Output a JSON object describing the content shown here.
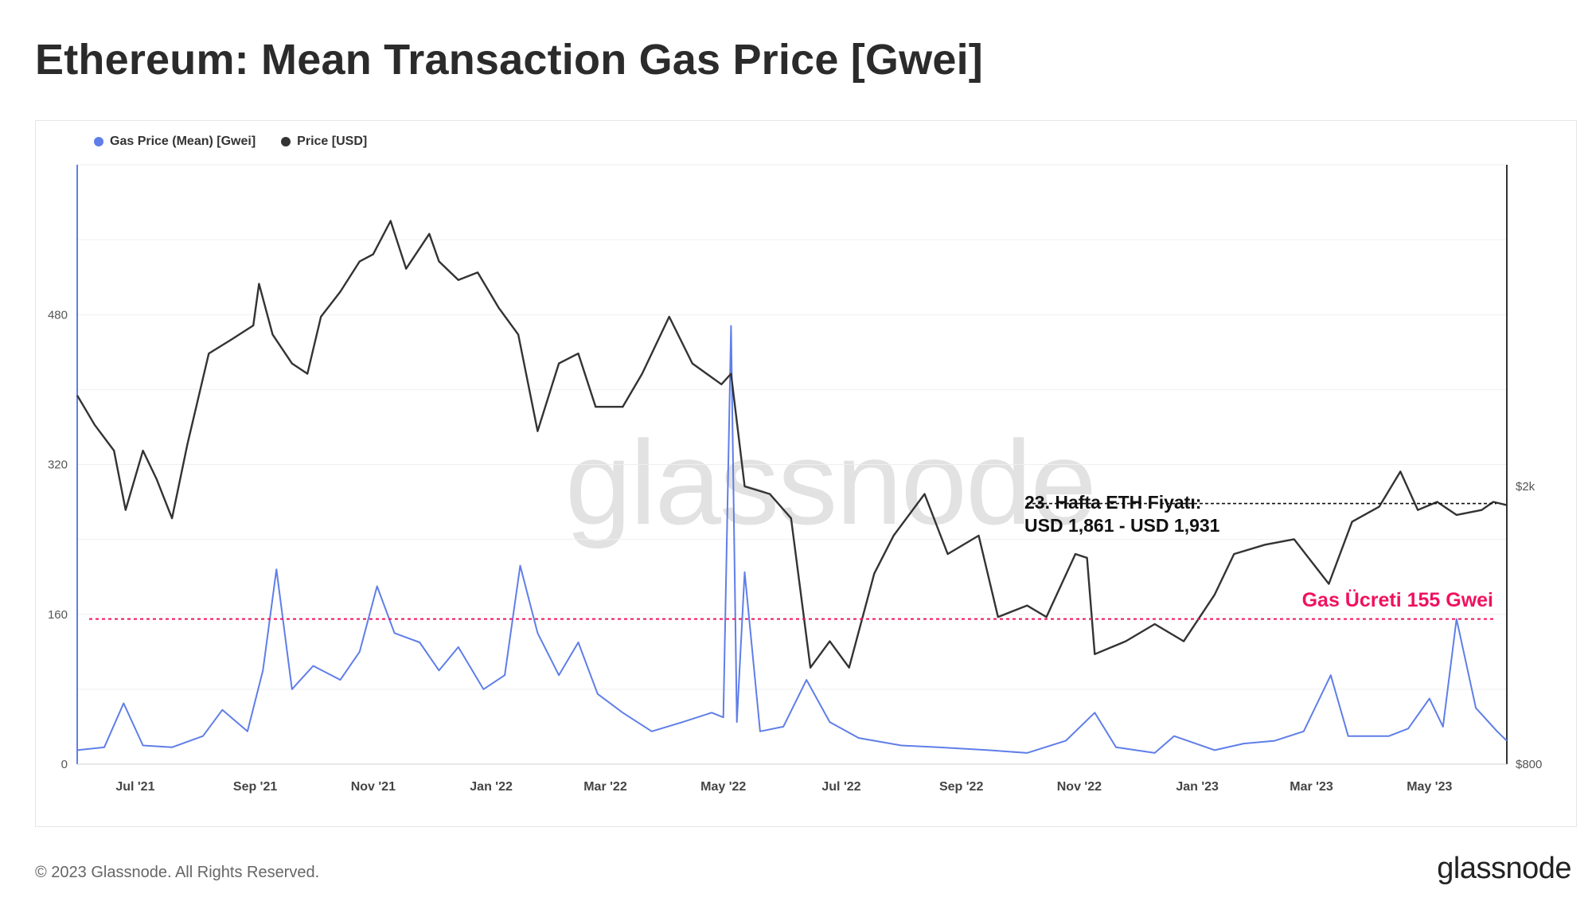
{
  "page_title": "Ethereum: Mean Transaction Gas Price [Gwei]",
  "footer": "© 2023 Glassnode. All Rights Reserved.",
  "brand": "glassnode",
  "watermark": "glassnode",
  "legend": [
    {
      "label": "Gas Price (Mean) [Gwei]",
      "color": "#5f7ee8"
    },
    {
      "label": "Price [USD]",
      "color": "#333333"
    }
  ],
  "annotations": {
    "week_line1": "23. Hafta ETH Fiyatı:",
    "week_line2": "USD 1,861 - USD 1,931",
    "gas_label": "Gas Ücreti 155 Gwei"
  },
  "chart_data": {
    "type": "line",
    "x_tick_labels": [
      "Jul '21",
      "Sep '21",
      "Nov '21",
      "Jan '22",
      "Mar '22",
      "May '22",
      "Jul '22",
      "Sep '22",
      "Nov '22",
      "Jan '23",
      "Mar '23",
      "May '23"
    ],
    "x_start": "2021-06-01",
    "x_end": "2023-06-10",
    "y_left": {
      "label": "",
      "ticks": [
        "0",
        "160",
        "320",
        "480"
      ],
      "range": [
        0,
        640
      ]
    },
    "y_right": {
      "label": "",
      "ticks": [
        "$800",
        "$2k"
      ],
      "scale": "log"
    },
    "reference_line_gwei": 155,
    "grid": true,
    "legend_position": "top-left",
    "series": [
      {
        "name": "Gas Price (Mean) [Gwei]",
        "axis": "left",
        "color": "#5f7ee8",
        "points": [
          [
            "2021-06-01",
            15
          ],
          [
            "2021-06-15",
            18
          ],
          [
            "2021-06-25",
            65
          ],
          [
            "2021-07-05",
            20
          ],
          [
            "2021-07-20",
            18
          ],
          [
            "2021-08-05",
            30
          ],
          [
            "2021-08-15",
            58
          ],
          [
            "2021-08-28",
            35
          ],
          [
            "2021-09-05",
            100
          ],
          [
            "2021-09-12",
            208
          ],
          [
            "2021-09-20",
            80
          ],
          [
            "2021-10-01",
            105
          ],
          [
            "2021-10-15",
            90
          ],
          [
            "2021-10-25",
            120
          ],
          [
            "2021-11-03",
            190
          ],
          [
            "2021-11-12",
            140
          ],
          [
            "2021-11-25",
            130
          ],
          [
            "2021-12-05",
            100
          ],
          [
            "2021-12-15",
            125
          ],
          [
            "2021-12-28",
            80
          ],
          [
            "2022-01-08",
            95
          ],
          [
            "2022-01-16",
            212
          ],
          [
            "2022-01-25",
            140
          ],
          [
            "2022-02-05",
            95
          ],
          [
            "2022-02-15",
            130
          ],
          [
            "2022-02-25",
            75
          ],
          [
            "2022-03-10",
            55
          ],
          [
            "2022-03-25",
            35
          ],
          [
            "2022-04-10",
            45
          ],
          [
            "2022-04-25",
            55
          ],
          [
            "2022-05-01",
            50
          ],
          [
            "2022-05-05",
            468
          ],
          [
            "2022-05-08",
            45
          ],
          [
            "2022-05-12",
            205
          ],
          [
            "2022-05-20",
            35
          ],
          [
            "2022-06-01",
            40
          ],
          [
            "2022-06-13",
            90
          ],
          [
            "2022-06-25",
            45
          ],
          [
            "2022-07-10",
            28
          ],
          [
            "2022-08-01",
            20
          ],
          [
            "2022-08-20",
            18
          ],
          [
            "2022-09-15",
            15
          ],
          [
            "2022-10-05",
            12
          ],
          [
            "2022-10-25",
            25
          ],
          [
            "2022-11-09",
            55
          ],
          [
            "2022-11-20",
            18
          ],
          [
            "2022-12-10",
            12
          ],
          [
            "2022-12-20",
            30
          ],
          [
            "2023-01-10",
            15
          ],
          [
            "2023-01-25",
            22
          ],
          [
            "2023-02-10",
            25
          ],
          [
            "2023-02-25",
            35
          ],
          [
            "2023-03-11",
            95
          ],
          [
            "2023-03-20",
            30
          ],
          [
            "2023-04-10",
            30
          ],
          [
            "2023-04-20",
            38
          ],
          [
            "2023-05-01",
            70
          ],
          [
            "2023-05-08",
            40
          ],
          [
            "2023-05-15",
            155
          ],
          [
            "2023-05-25",
            60
          ],
          [
            "2023-06-05",
            35
          ],
          [
            "2023-06-10",
            25
          ]
        ]
      },
      {
        "name": "Price [USD]",
        "axis": "right",
        "color": "#333333",
        "points": [
          [
            "2021-06-01",
            2700
          ],
          [
            "2021-06-10",
            2450
          ],
          [
            "2021-06-20",
            2250
          ],
          [
            "2021-06-26",
            1850
          ],
          [
            "2021-07-05",
            2250
          ],
          [
            "2021-07-12",
            2050
          ],
          [
            "2021-07-20",
            1800
          ],
          [
            "2021-07-28",
            2300
          ],
          [
            "2021-08-08",
            3100
          ],
          [
            "2021-08-20",
            3250
          ],
          [
            "2021-08-31",
            3400
          ],
          [
            "2021-09-03",
            3900
          ],
          [
            "2021-09-10",
            3300
          ],
          [
            "2021-09-20",
            3000
          ],
          [
            "2021-09-28",
            2900
          ],
          [
            "2021-10-05",
            3500
          ],
          [
            "2021-10-15",
            3800
          ],
          [
            "2021-10-25",
            4200
          ],
          [
            "2021-11-01",
            4300
          ],
          [
            "2021-11-10",
            4800
          ],
          [
            "2021-11-18",
            4100
          ],
          [
            "2021-11-30",
            4600
          ],
          [
            "2021-12-05",
            4200
          ],
          [
            "2021-12-15",
            3950
          ],
          [
            "2021-12-25",
            4050
          ],
          [
            "2022-01-05",
            3600
          ],
          [
            "2022-01-15",
            3300
          ],
          [
            "2022-01-25",
            2400
          ],
          [
            "2022-02-05",
            3000
          ],
          [
            "2022-02-15",
            3100
          ],
          [
            "2022-02-24",
            2600
          ],
          [
            "2022-03-10",
            2600
          ],
          [
            "2022-03-20",
            2900
          ],
          [
            "2022-04-03",
            3500
          ],
          [
            "2022-04-15",
            3000
          ],
          [
            "2022-04-30",
            2800
          ],
          [
            "2022-05-05",
            2900
          ],
          [
            "2022-05-12",
            2000
          ],
          [
            "2022-05-25",
            1950
          ],
          [
            "2022-06-05",
            1800
          ],
          [
            "2022-06-15",
            1100
          ],
          [
            "2022-06-25",
            1200
          ],
          [
            "2022-07-05",
            1100
          ],
          [
            "2022-07-18",
            1500
          ],
          [
            "2022-07-28",
            1700
          ],
          [
            "2022-08-13",
            1950
          ],
          [
            "2022-08-25",
            1600
          ],
          [
            "2022-09-10",
            1700
          ],
          [
            "2022-09-20",
            1300
          ],
          [
            "2022-10-05",
            1350
          ],
          [
            "2022-10-15",
            1300
          ],
          [
            "2022-10-30",
            1600
          ],
          [
            "2022-11-05",
            1580
          ],
          [
            "2022-11-09",
            1150
          ],
          [
            "2022-11-25",
            1200
          ],
          [
            "2022-12-10",
            1270
          ],
          [
            "2022-12-25",
            1200
          ],
          [
            "2023-01-10",
            1400
          ],
          [
            "2023-01-20",
            1600
          ],
          [
            "2023-02-05",
            1650
          ],
          [
            "2023-02-20",
            1680
          ],
          [
            "2023-03-10",
            1450
          ],
          [
            "2023-03-22",
            1780
          ],
          [
            "2023-04-05",
            1870
          ],
          [
            "2023-04-16",
            2100
          ],
          [
            "2023-04-25",
            1850
          ],
          [
            "2023-05-05",
            1900
          ],
          [
            "2023-05-15",
            1820
          ],
          [
            "2023-05-28",
            1850
          ],
          [
            "2023-06-03",
            1900
          ],
          [
            "2023-06-10",
            1880
          ]
        ]
      }
    ]
  }
}
